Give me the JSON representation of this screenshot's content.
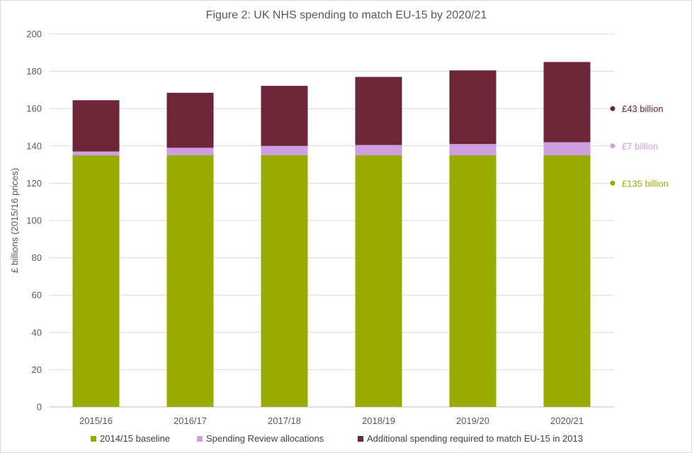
{
  "chart_data": {
    "type": "bar",
    "stacked": true,
    "title": "Figure 2: UK NHS spending to match EU-15 by 2020/21",
    "xlabel": "",
    "ylabel": "£ billions (2015/16 prices)",
    "ylim": [
      0,
      200
    ],
    "yticks": [
      0,
      20,
      40,
      60,
      80,
      100,
      120,
      140,
      160,
      180,
      200
    ],
    "grid": true,
    "legend_position": "bottom",
    "categories": [
      "2015/16",
      "2016/17",
      "2017/18",
      "2018/19",
      "2019/20",
      "2020/21"
    ],
    "series": [
      {
        "name": "2014/15 baseline",
        "color": "#9aab00",
        "values": [
          135,
          135,
          135,
          135,
          135,
          135
        ]
      },
      {
        "name": "Spending Review allocations",
        "color": "#cd9fe0",
        "values": [
          2,
          4,
          5,
          5.5,
          6,
          7
        ]
      },
      {
        "name": "Additional spending required to match EU-15 in 2013",
        "color": "#6d2538",
        "values": [
          27.5,
          29.5,
          32.2,
          36.5,
          39.5,
          43
        ]
      }
    ],
    "annotations": [
      {
        "text": "£43 billion",
        "y": 160,
        "color": "#6d2538"
      },
      {
        "text": "£7 billion",
        "y": 140,
        "color": "#cd9fe0"
      },
      {
        "text": "£135 billion",
        "y": 120,
        "color": "#9aab00"
      }
    ]
  }
}
